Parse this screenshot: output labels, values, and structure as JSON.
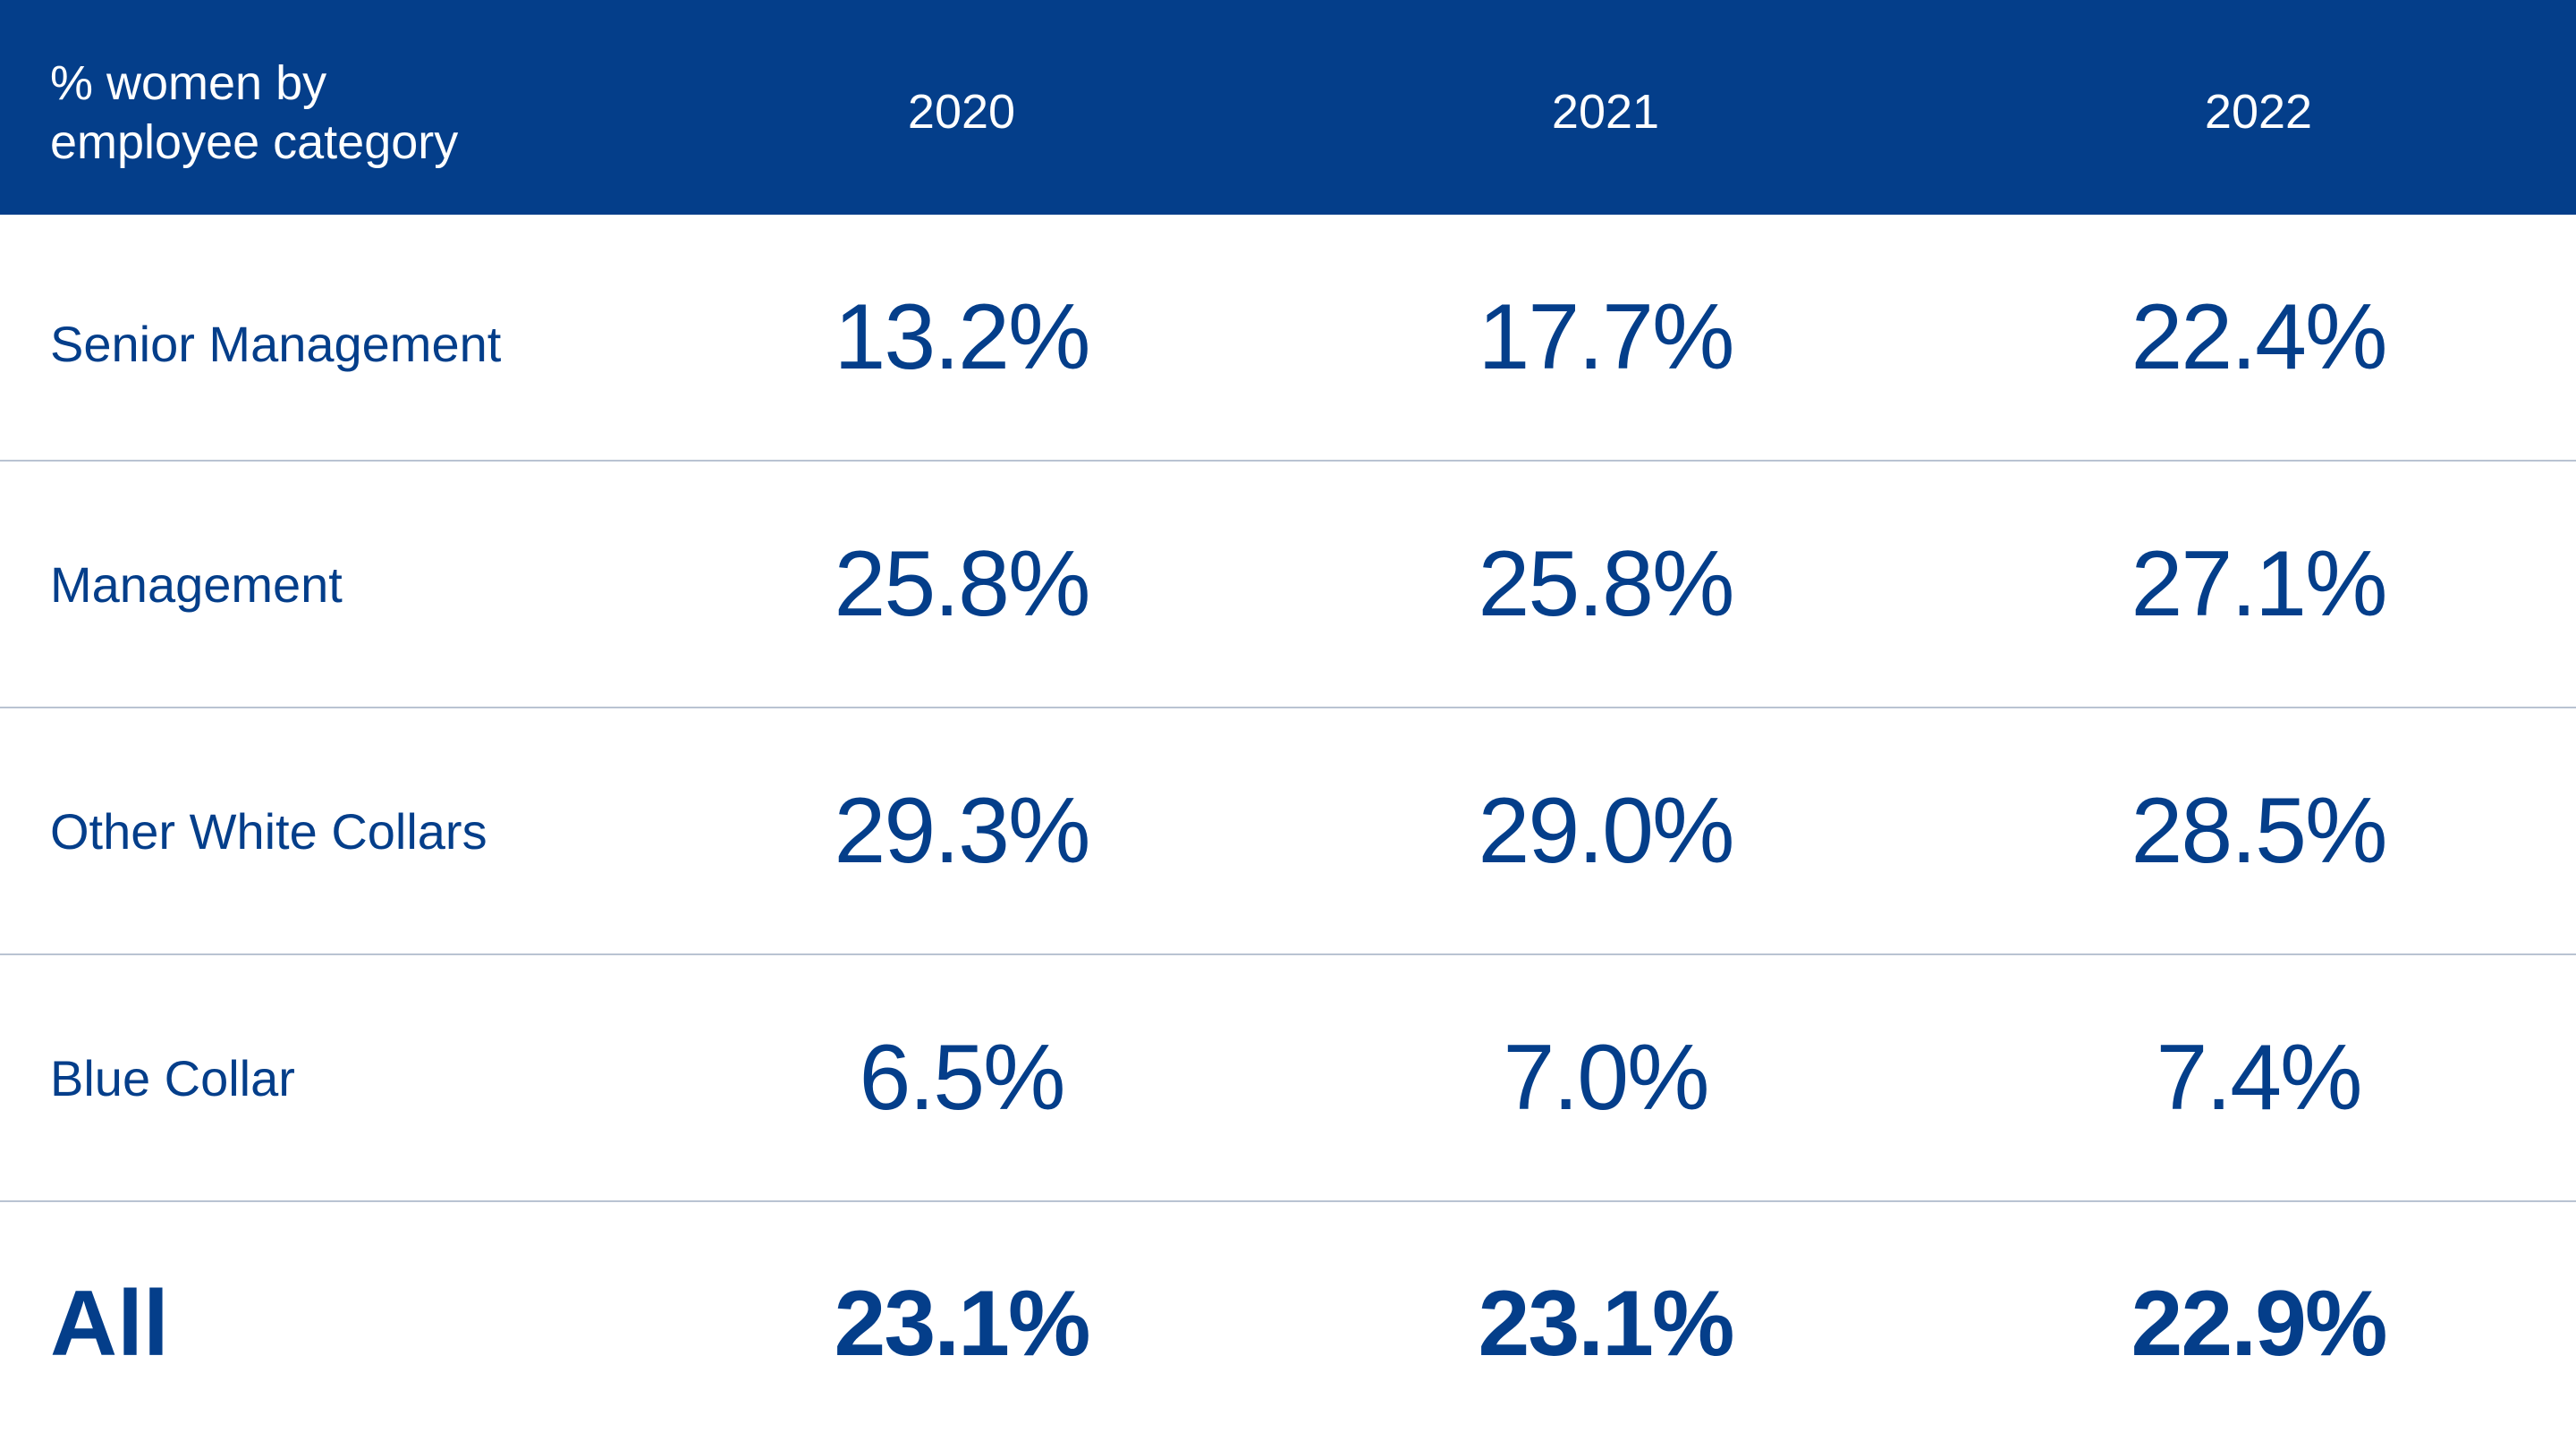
{
  "chart_data": {
    "type": "table",
    "header": {
      "label": "% women by\nemployee category",
      "columns": [
        "2020",
        "2021",
        "2022"
      ]
    },
    "rows": [
      {
        "label": "Senior Management",
        "values": [
          "13.2%",
          "17.7%",
          "22.4%"
        ]
      },
      {
        "label": "Management",
        "values": [
          "25.8%",
          "25.8%",
          "27.1%"
        ]
      },
      {
        "label": "Other White Collars",
        "values": [
          "29.3%",
          "29.0%",
          "28.5%"
        ]
      },
      {
        "label": "Blue Collar",
        "values": [
          "6.5%",
          "7.0%",
          "7.4%"
        ]
      },
      {
        "label": "All",
        "values": [
          "23.1%",
          "23.1%",
          "22.9%"
        ],
        "emphasis": "bold"
      }
    ]
  },
  "colors": {
    "header_background": "#043e8a",
    "header_text": "#ffffff",
    "body_text": "#043e8a",
    "row_divider": "#b9c3d2"
  }
}
